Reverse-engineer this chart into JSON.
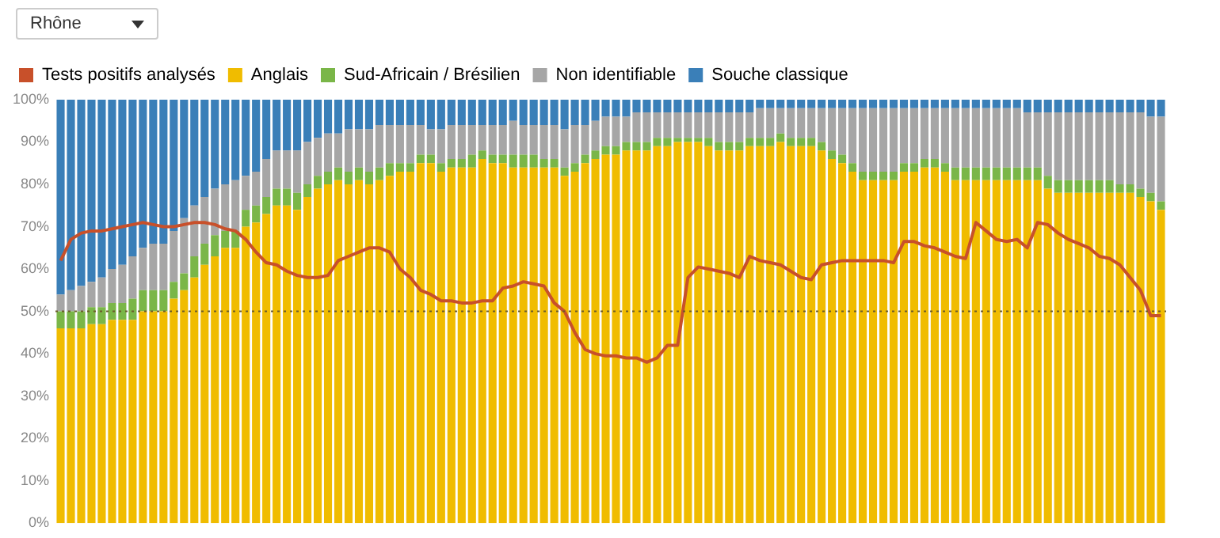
{
  "chart_data": {
    "type": "bar",
    "stacked": true,
    "legend": "top left",
    "tick_labels": "y",
    "annotations": [
      "Rhône"
    ],
    "categories": [
      null,
      null,
      null,
      null,
      null,
      null,
      null,
      null,
      null,
      null,
      null,
      null,
      null,
      null,
      null,
      null,
      null,
      null,
      null,
      null,
      null,
      null,
      null,
      null,
      null,
      null,
      null,
      null,
      null,
      null,
      null,
      null,
      null,
      null,
      null,
      null,
      null,
      null,
      null,
      null,
      null,
      null,
      null,
      null,
      null,
      null,
      null,
      null,
      null,
      null,
      null,
      null,
      null,
      null,
      null,
      null,
      null,
      null,
      null,
      null,
      null,
      null,
      null,
      null,
      null,
      null,
      null,
      null,
      null,
      null,
      null,
      null,
      null,
      null,
      null,
      null,
      null,
      null,
      null,
      null,
      null,
      null,
      null,
      null,
      null,
      null,
      null,
      null,
      null,
      null,
      null,
      null,
      null,
      null,
      null,
      null,
      null,
      null,
      null,
      null,
      null,
      null,
      null,
      null,
      null,
      null,
      null,
      null
    ],
    "ylim": [
      0,
      100
    ],
    "yticks": [
      {
        "value": 0,
        "label": "0%"
      },
      {
        "value": 10,
        "label": "10%"
      },
      {
        "value": 20,
        "label": "20%"
      },
      {
        "value": 30,
        "label": "30%"
      },
      {
        "value": 40,
        "label": "40%"
      },
      {
        "value": 50,
        "label": "50%"
      },
      {
        "value": 60,
        "label": "60%"
      },
      {
        "value": 70,
        "label": "70%"
      },
      {
        "value": 80,
        "label": "80%"
      },
      {
        "value": 90,
        "label": "90%"
      },
      {
        "value": 100,
        "label": "100%"
      }
    ],
    "ref_lines": [
      {
        "axis": "y",
        "value": 50,
        "label": null,
        "color": "#6b5a2a",
        "line_style": "dotted"
      }
    ],
    "series": [
      {
        "name": "Tests positifs analysés",
        "type": "line",
        "color": "#c8502a",
        "values": [
          62,
          67,
          68.5,
          69,
          69,
          69.5,
          70,
          70.5,
          71,
          70.5,
          70,
          70,
          70.5,
          71,
          71,
          70.5,
          69.5,
          69,
          67,
          64,
          61.5,
          61,
          59.5,
          58.5,
          58,
          58,
          58.5,
          62,
          63,
          64,
          65,
          65,
          64,
          60,
          58,
          55,
          54,
          52.5,
          52.5,
          52,
          52,
          52.5,
          52.5,
          55.5,
          56,
          57,
          56.5,
          56,
          52,
          50,
          45,
          41,
          40,
          39.5,
          39.5,
          39,
          39,
          38,
          39,
          42,
          42,
          58,
          60.5,
          60,
          59.5,
          59,
          58,
          63,
          62,
          61.5,
          61,
          59.5,
          58,
          57.5,
          61,
          61.5,
          62,
          62,
          62,
          62,
          62,
          61.5,
          66.5,
          66.5,
          65.5,
          65,
          64,
          63,
          62.5,
          71,
          69,
          67,
          66.5,
          67,
          65,
          71,
          70.5,
          68.5,
          67,
          66,
          65,
          63,
          62.5,
          61,
          58,
          55,
          49,
          49
        ]
      },
      {
        "name": "Anglais",
        "color": "#f0bc00",
        "values": [
          46,
          46,
          46,
          47,
          47,
          48,
          48,
          48,
          50,
          50,
          50,
          53,
          55,
          58,
          61,
          63,
          65,
          65,
          70,
          71,
          73,
          75,
          75,
          74,
          77,
          79,
          80,
          81,
          80,
          81,
          80,
          81,
          82,
          83,
          83,
          85,
          85,
          83,
          84,
          84,
          84,
          86,
          85,
          85,
          84,
          84,
          84,
          84,
          84,
          82,
          83,
          85,
          86,
          87,
          87,
          88,
          88,
          88,
          89,
          89,
          90,
          90,
          90,
          89,
          88,
          88,
          88,
          89,
          89,
          89,
          90,
          89,
          89,
          89,
          88,
          86,
          85,
          83,
          81,
          81,
          81,
          81,
          83,
          83,
          84,
          84,
          83,
          81,
          81,
          81,
          81,
          81,
          81,
          81,
          81,
          81,
          79,
          78,
          78,
          78,
          78,
          78,
          78,
          78,
          78,
          77,
          76,
          74
        ]
      },
      {
        "name": "Sud-Africain / Brésilien",
        "color": "#7ab648",
        "values": [
          4,
          4,
          4,
          4,
          4,
          4,
          4,
          5,
          5,
          5,
          5,
          4,
          4,
          5,
          5,
          5,
          4,
          4,
          4,
          4,
          4,
          4,
          4,
          4,
          3,
          3,
          3,
          3,
          3,
          3,
          3,
          3,
          3,
          2,
          2,
          2,
          2,
          2,
          2,
          2,
          3,
          2,
          2,
          2,
          3,
          3,
          3,
          2,
          2,
          2,
          2,
          2,
          2,
          2,
          2,
          2,
          2,
          2,
          2,
          2,
          1,
          1,
          1,
          2,
          2,
          2,
          2,
          2,
          2,
          2,
          2,
          2,
          2,
          2,
          2,
          2,
          2,
          2,
          2,
          2,
          2,
          2,
          2,
          2,
          2,
          2,
          2,
          3,
          3,
          3,
          3,
          3,
          3,
          3,
          3,
          3,
          3,
          3,
          3,
          3,
          3,
          3,
          3,
          2,
          2,
          2,
          2,
          2
        ]
      },
      {
        "name": "Non identifiable",
        "color": "#a6a6a6",
        "values": [
          4,
          5,
          6,
          6,
          7,
          8,
          9,
          10,
          10,
          11,
          11,
          12,
          13,
          12,
          11,
          11,
          11,
          12,
          8,
          8,
          9,
          9,
          9,
          10,
          10,
          9,
          9,
          8,
          10,
          9,
          10,
          10,
          9,
          9,
          9,
          7,
          6,
          8,
          8,
          8,
          7,
          6,
          7,
          7,
          8,
          7,
          7,
          8,
          8,
          9,
          9,
          7,
          7,
          7,
          7,
          6,
          7,
          7,
          6,
          6,
          6,
          6,
          6,
          6,
          7,
          7,
          7,
          6,
          7,
          7,
          6,
          7,
          7,
          7,
          8,
          10,
          11,
          13,
          15,
          15,
          15,
          15,
          13,
          13,
          12,
          12,
          13,
          14,
          14,
          14,
          14,
          14,
          14,
          14,
          13,
          13,
          15,
          16,
          16,
          16,
          16,
          16,
          16,
          17,
          17,
          18,
          18,
          20
        ]
      },
      {
        "name": "Souche classique",
        "color": "#3a7fb8",
        "values": [
          46,
          45,
          44,
          43,
          42,
          40,
          39,
          37,
          35,
          34,
          34,
          31,
          28,
          25,
          23,
          21,
          20,
          19,
          18,
          17,
          14,
          12,
          12,
          12,
          10,
          9,
          8,
          8,
          7,
          7,
          7,
          6,
          6,
          6,
          6,
          6,
          7,
          7,
          6,
          6,
          6,
          6,
          6,
          6,
          5,
          6,
          6,
          6,
          6,
          7,
          6,
          6,
          5,
          4,
          4,
          4,
          3,
          3,
          3,
          3,
          3,
          3,
          3,
          3,
          3,
          3,
          3,
          3,
          2,
          2,
          2,
          2,
          2,
          2,
          2,
          2,
          2,
          2,
          2,
          2,
          2,
          2,
          2,
          2,
          2,
          2,
          2,
          2,
          2,
          2,
          2,
          2,
          2,
          2,
          3,
          3,
          3,
          3,
          3,
          3,
          3,
          3,
          3,
          3,
          3,
          3,
          4,
          4
        ]
      }
    ]
  }
}
